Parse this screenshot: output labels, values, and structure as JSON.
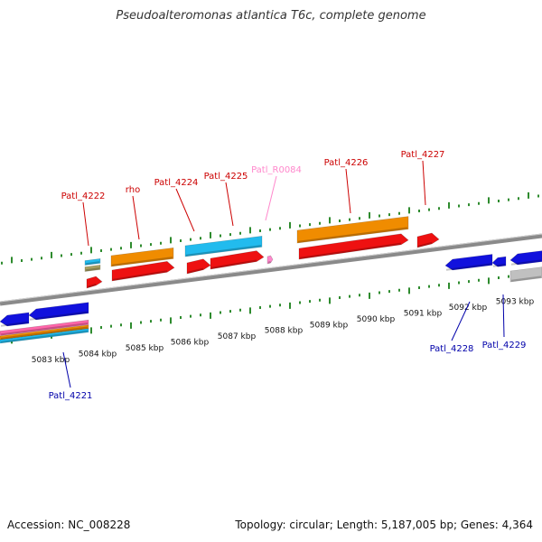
{
  "title": "Pseudoalteromonas atlantica T6c, complete genome",
  "footer": {
    "accession": "Accession: NC_008228",
    "topology": "Topology: circular; Length: 5,187,005 bp; Genes: 4,364"
  },
  "colors": {
    "backbone": "#8a8a8a",
    "tick": "#2e8b2e",
    "label_forward": "#cc0000",
    "label_reverse": "#0000aa",
    "label_rna": "#ff88cc",
    "gene_red": "#ee1111",
    "gene_orange": "#f08c00",
    "gene_cyan": "#22bbee",
    "gene_blue": "#1111dd",
    "gene_grey": "#c0c0c0"
  },
  "scale_labels": [
    "5083 kbp",
    "5084 kbp",
    "5085 kbp",
    "5086 kbp",
    "5087 kbp",
    "5088 kbp",
    "5089 kbp",
    "5090 kbp",
    "5091 kbp",
    "5092 kbp",
    "5093 kbp"
  ],
  "gene_labels": [
    {
      "text": "Patl_4222",
      "strand": "forward"
    },
    {
      "text": "rho",
      "strand": "forward"
    },
    {
      "text": "Patl_4224",
      "strand": "forward"
    },
    {
      "text": "Patl_4225",
      "strand": "forward"
    },
    {
      "text": "Patl_R0084",
      "strand": "rna"
    },
    {
      "text": "Patl_4226",
      "strand": "forward"
    },
    {
      "text": "Patl_4227",
      "strand": "forward"
    },
    {
      "text": "Patl_4221",
      "strand": "reverse"
    },
    {
      "text": "Patl_4228",
      "strand": "reverse"
    },
    {
      "text": "Patl_4229",
      "strand": "reverse"
    }
  ]
}
